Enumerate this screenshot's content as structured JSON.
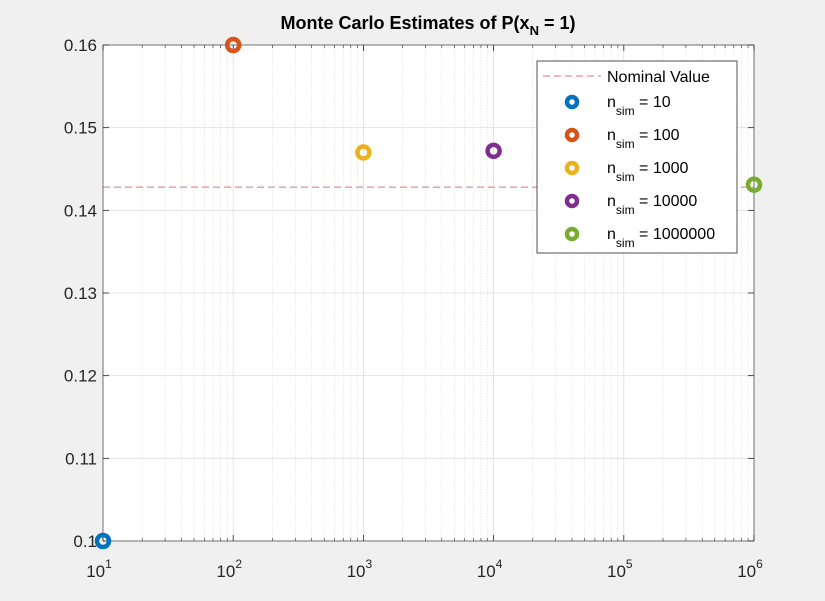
{
  "chart_data": {
    "type": "scatter",
    "title": {
      "prefix": "Monte Carlo Estimates of P(x",
      "subscript": "N",
      "suffix": " = 1)"
    },
    "x_scale": "log",
    "xlim": [
      10,
      1000000
    ],
    "ylim": [
      0.1,
      0.16
    ],
    "x_ticks": [
      {
        "base": "10",
        "exp": "1",
        "value": 10
      },
      {
        "base": "10",
        "exp": "2",
        "value": 100
      },
      {
        "base": "10",
        "exp": "3",
        "value": 1000
      },
      {
        "base": "10",
        "exp": "4",
        "value": 10000
      },
      {
        "base": "10",
        "exp": "5",
        "value": 100000
      },
      {
        "base": "10",
        "exp": "6",
        "value": 1000000
      }
    ],
    "y_ticks": [
      "0.1",
      "0.11",
      "0.12",
      "0.13",
      "0.14",
      "0.15",
      "0.16"
    ],
    "grid": true,
    "reference_line": {
      "name": "Nominal Value",
      "y": 0.1428,
      "color": "#d9737a",
      "style": "dashed"
    },
    "series": [
      {
        "name": "n",
        "subscript": "sim",
        "suffix": " = 10",
        "x": 10,
        "y": 0.1,
        "color": "#0072bd"
      },
      {
        "name": "n",
        "subscript": "sim",
        "suffix": " = 100",
        "x": 100,
        "y": 0.16,
        "color": "#d95319"
      },
      {
        "name": "n",
        "subscript": "sim",
        "suffix": " = 1000",
        "x": 1000,
        "y": 0.147,
        "color": "#edb120"
      },
      {
        "name": "n",
        "subscript": "sim",
        "suffix": " = 10000",
        "x": 10000,
        "y": 0.1472,
        "color": "#7e2f8e"
      },
      {
        "name": "n",
        "subscript": "sim",
        "suffix": " = 1000000",
        "x": 1000000,
        "y": 0.1431,
        "color": "#77ac30"
      }
    ],
    "legend_position": "top-right"
  }
}
